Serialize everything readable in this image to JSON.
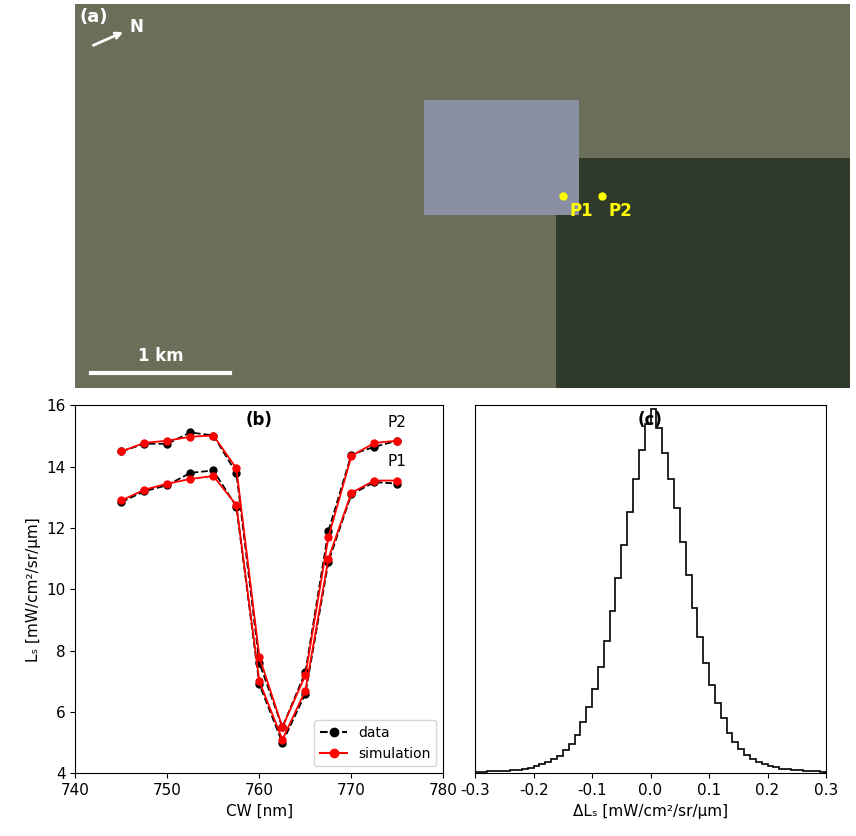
{
  "chart_data": [
    {
      "type": "image",
      "title": "(a)",
      "north_label": "N",
      "points": [
        "P1",
        "P2"
      ],
      "scale_bar": "1 km"
    },
    {
      "type": "line",
      "title": "(b)",
      "x_label": "CW [nm]",
      "y_label": "Lₛ [mW/cm²/sr/μm]",
      "x": [
        745,
        747.5,
        750,
        752.5,
        755,
        757.5,
        760,
        762.5,
        765,
        767.5,
        770,
        772.5,
        775
      ],
      "series": [
        {
          "name": "data",
          "color": "#000000",
          "marker": "o",
          "line_style": "dashed",
          "curves": [
            {
              "label": "P1",
              "values": [
                12.85,
                13.2,
                13.4,
                13.8,
                13.88,
                12.7,
                6.9,
                5.0,
                6.6,
                10.9,
                13.1,
                13.5,
                13.45
              ]
            },
            {
              "label": "P2",
              "values": [
                14.5,
                14.75,
                14.75,
                15.12,
                15.02,
                13.8,
                7.6,
                5.5,
                7.3,
                11.9,
                14.4,
                14.65,
                14.85
              ]
            }
          ]
        },
        {
          "name": "simulation",
          "color": "#ff0000",
          "marker": "o",
          "line_style": "solid",
          "curves": [
            {
              "label": "P1",
              "values": [
                12.9,
                13.25,
                13.45,
                13.6,
                13.7,
                12.75,
                7.0,
                5.1,
                6.7,
                11.0,
                13.15,
                13.55,
                13.55
              ]
            },
            {
              "label": "P2",
              "values": [
                14.5,
                14.78,
                14.85,
                14.98,
                15.02,
                13.95,
                7.8,
                5.5,
                7.2,
                11.7,
                14.35,
                14.78,
                14.85
              ]
            }
          ]
        }
      ],
      "xlim": [
        740,
        780
      ],
      "xticks": [
        740,
        750,
        760,
        770,
        780
      ],
      "ylim": [
        4,
        16
      ],
      "yticks": [
        4,
        6,
        8,
        10,
        12,
        14,
        16
      ],
      "legend": "lower right"
    },
    {
      "type": "histogram",
      "title": "(c)",
      "x_label": "ΔLₛ [mW/cm²/sr/μm]",
      "color": "#000000",
      "bins": [
        -0.3,
        -0.29,
        -0.28,
        -0.27,
        -0.26,
        -0.25,
        -0.24,
        -0.23,
        -0.22,
        -0.21,
        -0.2,
        -0.19,
        -0.18,
        -0.17,
        -0.16,
        -0.15,
        -0.14,
        -0.13,
        -0.12,
        -0.11,
        -0.1,
        -0.09,
        -0.08,
        -0.07,
        -0.06,
        -0.05,
        -0.04,
        -0.03,
        -0.02,
        -0.01,
        0.0,
        0.01,
        0.02,
        0.03,
        0.04,
        0.05,
        0.06,
        0.07,
        0.08,
        0.09,
        0.1,
        0.11,
        0.12,
        0.13,
        0.14,
        0.15,
        0.16,
        0.17,
        0.18,
        0.19,
        0.2,
        0.21,
        0.22,
        0.23,
        0.24,
        0.25,
        0.26,
        0.27,
        0.28,
        0.29,
        0.3
      ],
      "counts": [
        0.004,
        0.004,
        0.005,
        0.005,
        0.006,
        0.007,
        0.008,
        0.01,
        0.012,
        0.015,
        0.019,
        0.024,
        0.03,
        0.038,
        0.048,
        0.062,
        0.08,
        0.105,
        0.14,
        0.18,
        0.23,
        0.29,
        0.36,
        0.44,
        0.53,
        0.62,
        0.71,
        0.8,
        0.88,
        0.95,
        0.99,
        0.94,
        0.87,
        0.8,
        0.72,
        0.63,
        0.54,
        0.45,
        0.37,
        0.3,
        0.24,
        0.19,
        0.15,
        0.11,
        0.085,
        0.065,
        0.05,
        0.04,
        0.031,
        0.025,
        0.02,
        0.016,
        0.013,
        0.011,
        0.009,
        0.008,
        0.007,
        0.006,
        0.005,
        0.004
      ],
      "xlim": [
        -0.3,
        0.3
      ],
      "xticks": [
        -0.3,
        -0.2,
        -0.1,
        0.0,
        0.1,
        0.2,
        0.3
      ],
      "ylim": [
        0,
        1.0
      ],
      "tick_labels": "x"
    }
  ]
}
